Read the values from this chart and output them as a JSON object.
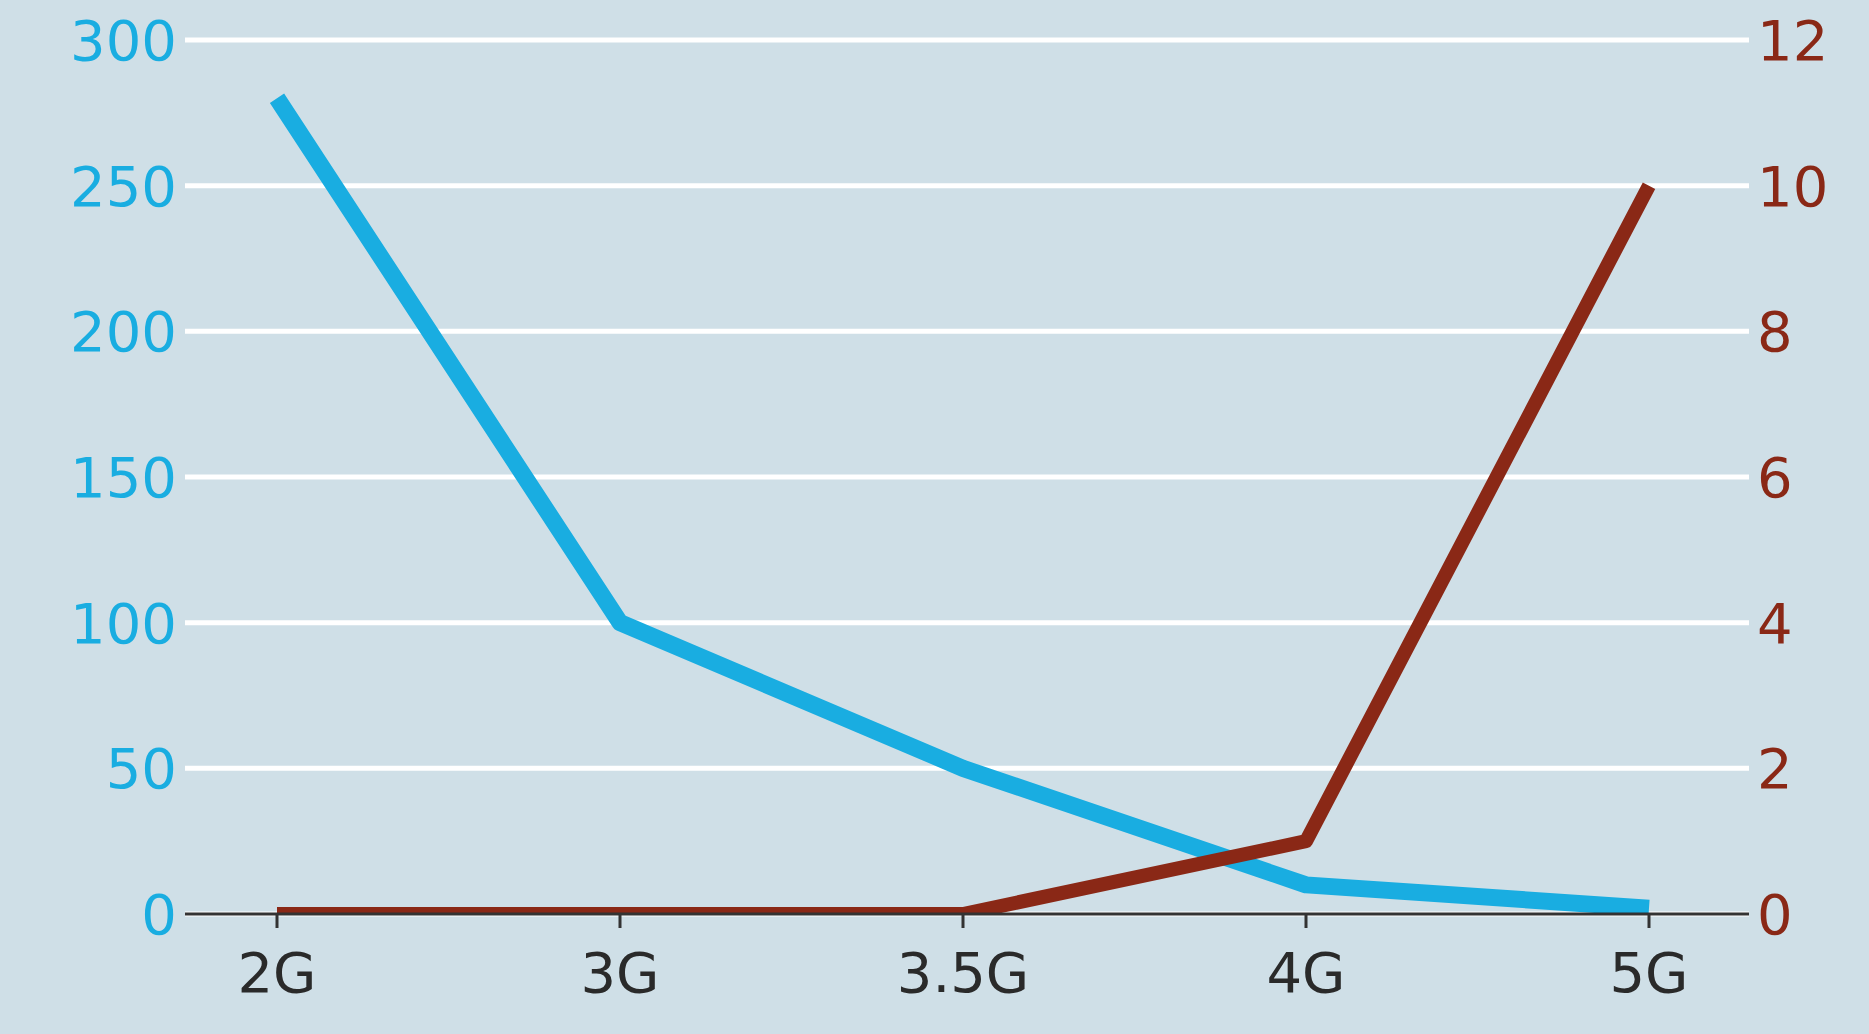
{
  "chart_data": {
    "type": "line",
    "categories": [
      "2G",
      "3G",
      "3.5G",
      "4G",
      "5G"
    ],
    "series": [
      {
        "color": "#19ade1",
        "values": [
          280,
          100,
          50,
          10,
          2
        ]
      },
      {
        "color": "#8a2816",
        "values": [
          0,
          0,
          0,
          1,
          10
        ],
        "axis": "y2"
      }
    ],
    "ylim": [
      0,
      300
    ],
    "yticks": [
      0,
      50,
      100,
      150,
      200,
      250,
      300
    ],
    "y2lim": [
      0,
      12
    ],
    "y2ticks": [
      0,
      2,
      4,
      6,
      8,
      10,
      12
    ],
    "grid": "y"
  }
}
